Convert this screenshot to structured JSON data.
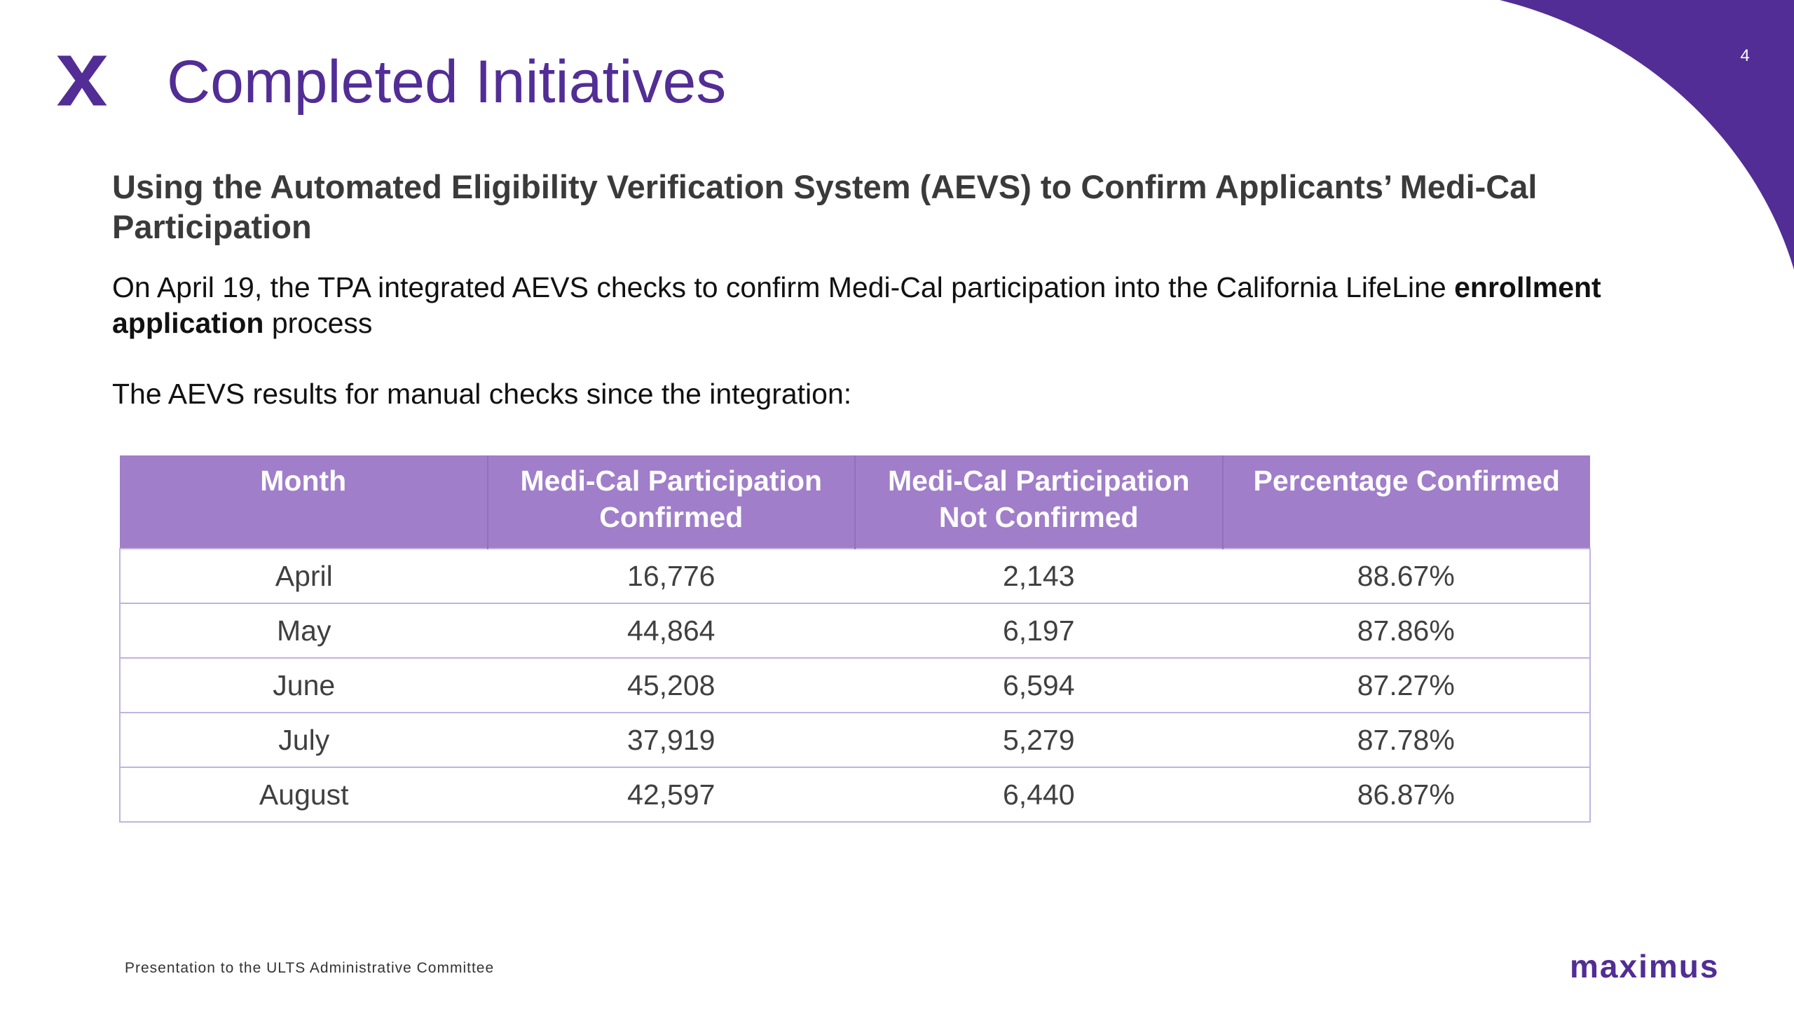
{
  "slide": {
    "page_number": "4",
    "title": "Completed Initiatives",
    "subtitle": "Using the Automated Eligibility Verification System (AEVS) to Confirm Applicants’ Medi-Cal Participation",
    "intro": {
      "text_before": "On April 19, the TPA integrated AEVS checks to confirm Medi-Cal participation into the California LifeLine ",
      "bold_text": "enrollment application",
      "text_after": " process"
    },
    "results_intro": "The AEVS results for manual checks since the integration:",
    "footer": "Presentation to the ULTS Administrative Committee",
    "brand": "maximus"
  },
  "table": {
    "headers": [
      "Month",
      "Medi-Cal Participation Confirmed",
      "Medi-Cal Participation Not Confirmed",
      "Percentage Confirmed"
    ],
    "rows": [
      [
        "April",
        "16,776",
        "2,143",
        "88.67%"
      ],
      [
        "May",
        "44,864",
        "6,197",
        "87.86%"
      ],
      [
        "June",
        "45,208",
        "6,594",
        "87.27%"
      ],
      [
        "July",
        "37,919",
        "5,279",
        "87.78%"
      ],
      [
        "August",
        "42,597",
        "6,440",
        "86.87%"
      ]
    ]
  },
  "icons": {
    "logo": "x-logo-icon",
    "corner": "corner-swoosh-decoration"
  },
  "colors": {
    "brand_purple": "#522d95",
    "header_purple": "#a07ec9",
    "table_border": "#c2b2e0",
    "subtitle_gray": "#3a3a3a"
  }
}
